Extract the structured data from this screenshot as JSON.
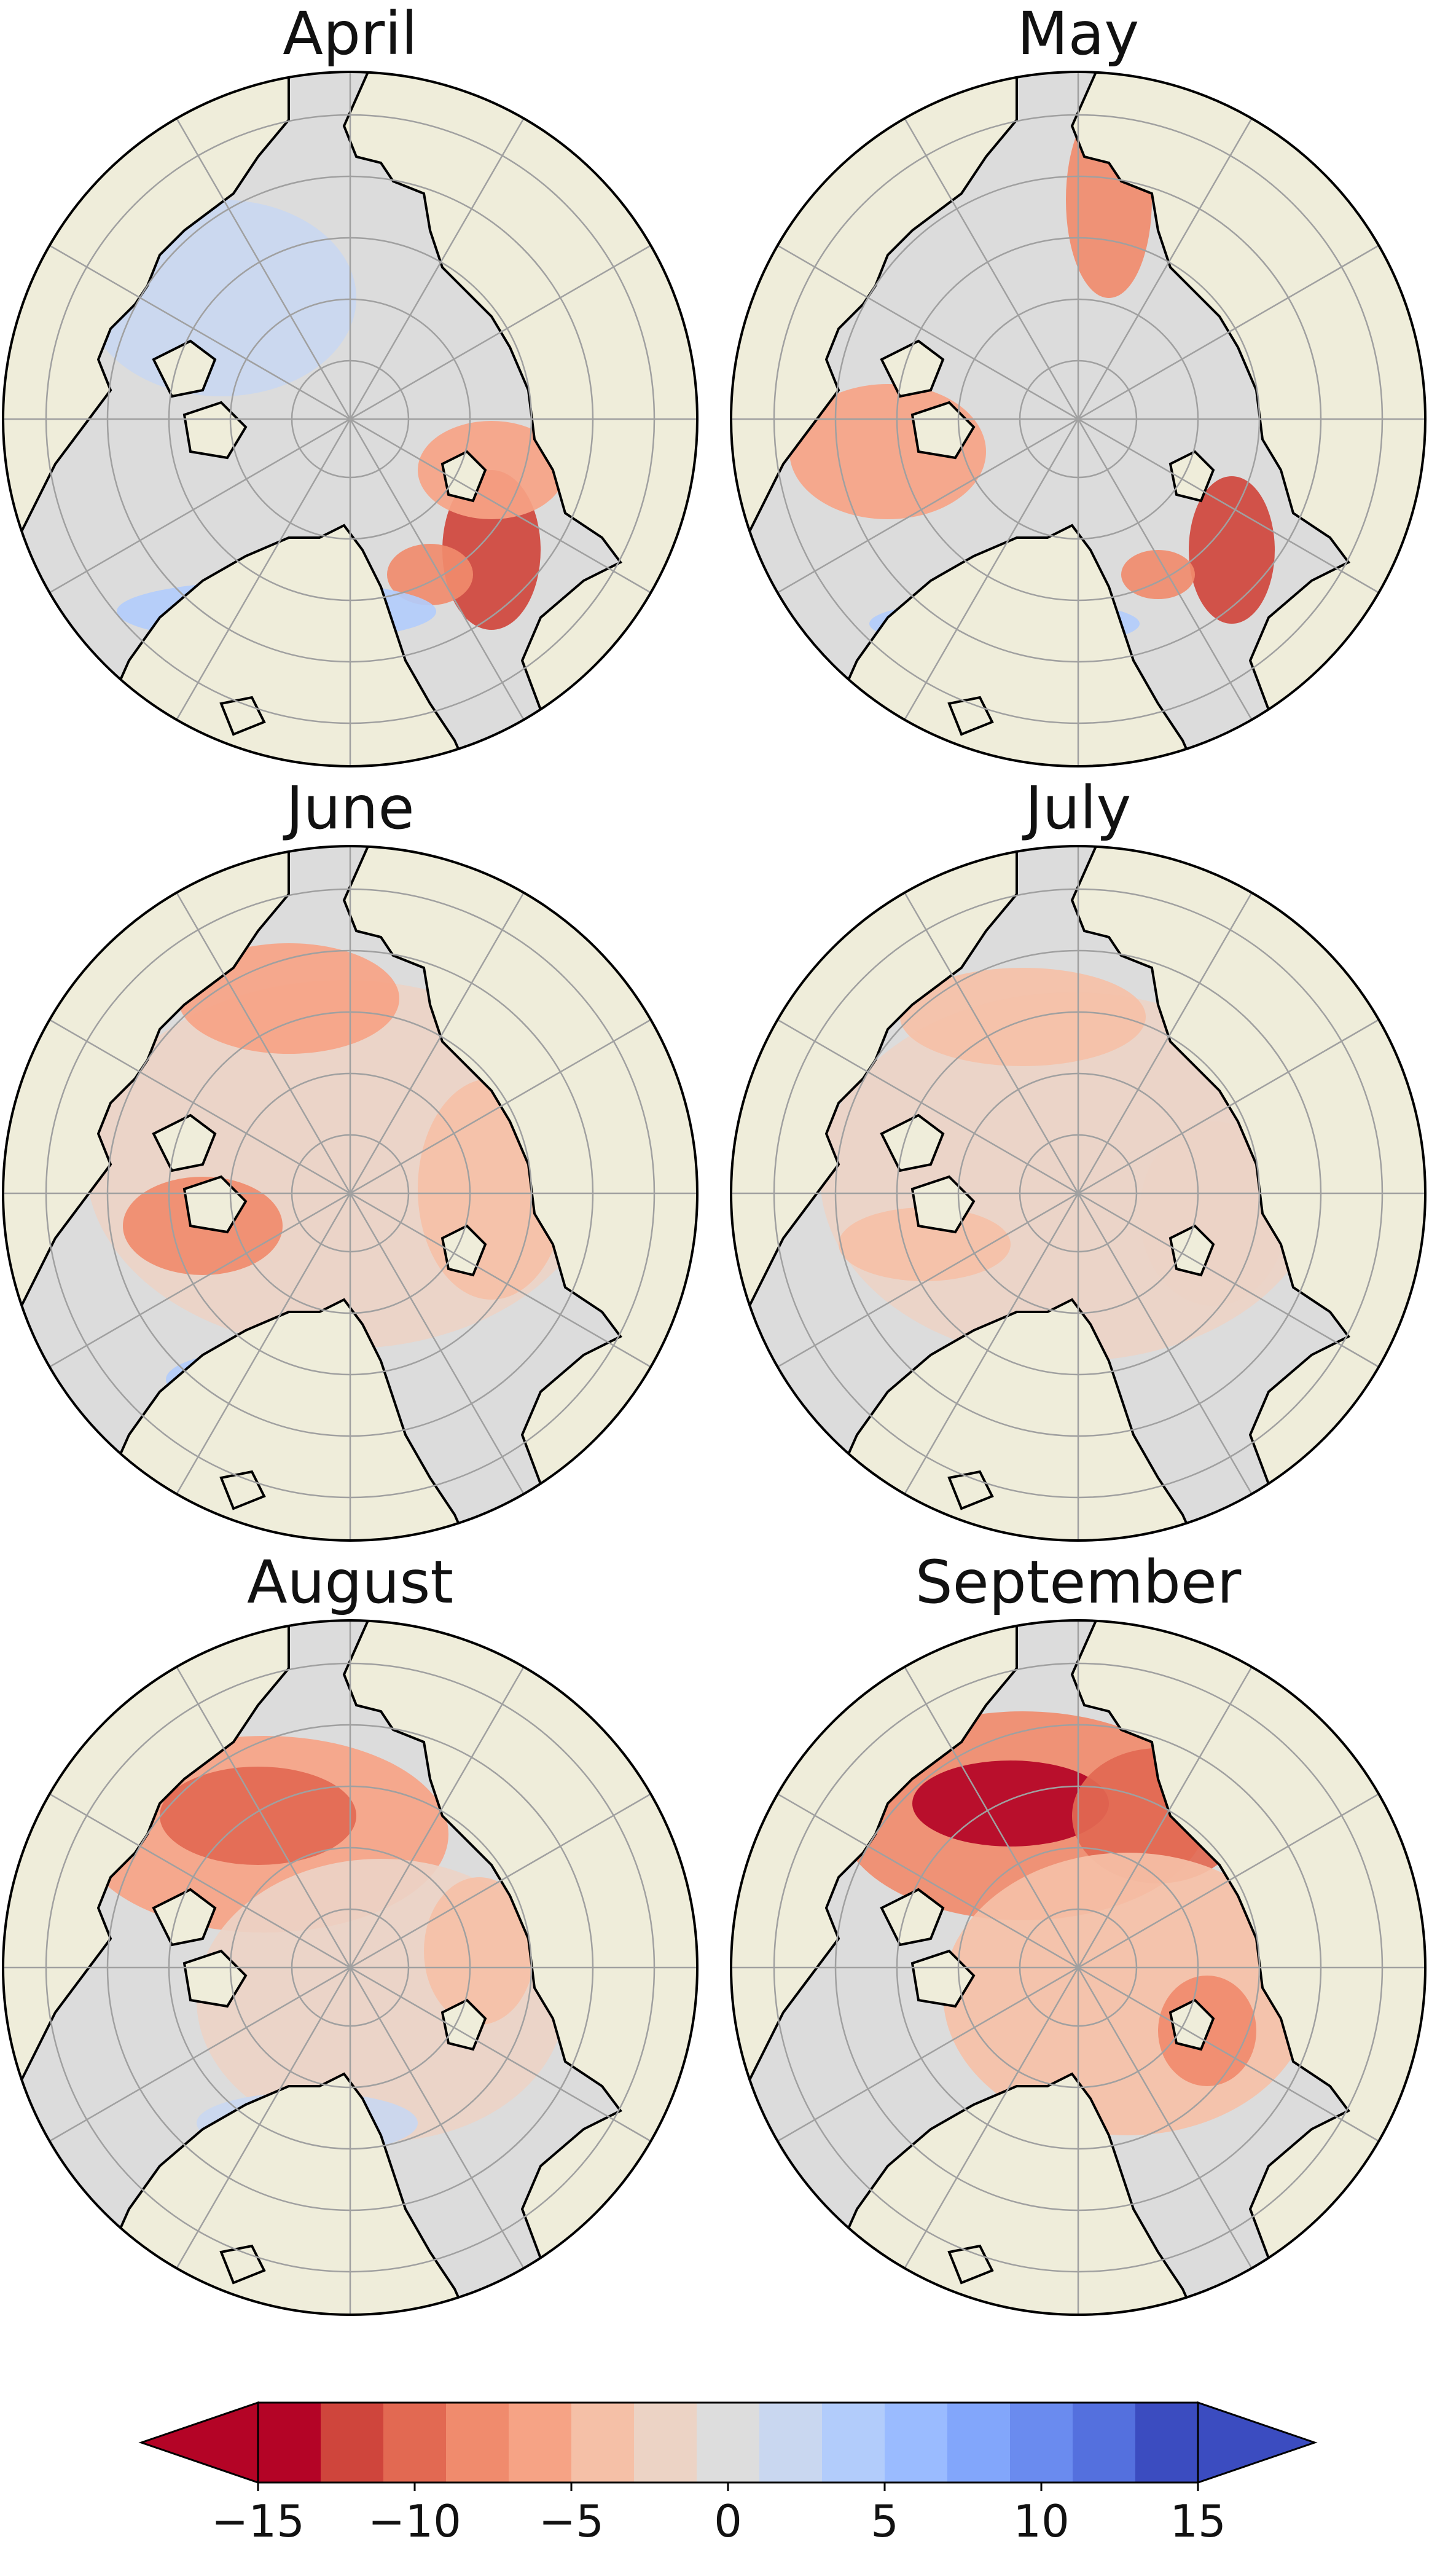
{
  "panels": [
    {
      "title": "April",
      "month_index": 0
    },
    {
      "title": "May",
      "month_index": 1
    },
    {
      "title": "June",
      "month_index": 2
    },
    {
      "title": "July",
      "month_index": 3
    },
    {
      "title": "August",
      "month_index": 4
    },
    {
      "title": "September",
      "month_index": 5
    }
  ],
  "colorbar": {
    "min": -15,
    "max": 15,
    "step": 2.14,
    "extend": "both",
    "ticks": [
      "−15",
      "−10",
      "−5",
      "0",
      "5",
      "10",
      "15"
    ],
    "tick_values": [
      -15,
      -10,
      -5,
      0,
      5,
      10,
      15
    ],
    "colors": [
      "#b40426",
      "#cf453c",
      "#e26952",
      "#f08b6d",
      "#f6a385",
      "#f5c0a7",
      "#ecd3c5",
      "#dddddd",
      "#c9d7f0",
      "#b2ccfb",
      "#9abbff",
      "#82a6fb",
      "#6a8bef",
      "#5470de",
      "#3b4cc0"
    ]
  },
  "style": {
    "land_color": "#efedda",
    "ocean_color": "#dcdcdc",
    "coast_color": "#000000",
    "grid_color": "#a0a0a0"
  }
}
